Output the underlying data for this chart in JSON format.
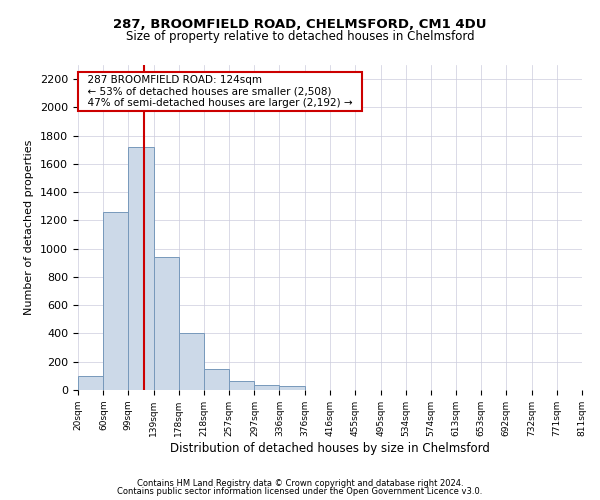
{
  "title1": "287, BROOMFIELD ROAD, CHELMSFORD, CM1 4DU",
  "title2": "Size of property relative to detached houses in Chelmsford",
  "xlabel": "Distribution of detached houses by size in Chelmsford",
  "ylabel": "Number of detached properties",
  "footer1": "Contains HM Land Registry data © Crown copyright and database right 2024.",
  "footer2": "Contains public sector information licensed under the Open Government Licence v3.0.",
  "bar_color": "#ccd9e8",
  "bar_edge_color": "#7799bb",
  "grid_color": "#ccccdd",
  "annotation_line_color": "#cc0000",
  "annotation_box_color": "#cc0000",
  "annotation_text": "  287 BROOMFIELD ROAD: 124sqm  \n  ← 53% of detached houses are smaller (2,508)  \n  47% of semi-detached houses are larger (2,192) →  ",
  "property_size": 124,
  "bin_edges": [
    20,
    60,
    99,
    139,
    178,
    218,
    257,
    297,
    336,
    376,
    416,
    455,
    495,
    534,
    574,
    613,
    653,
    692,
    732,
    771,
    811
  ],
  "bar_values": [
    100,
    1260,
    1720,
    940,
    400,
    150,
    65,
    35,
    25,
    0,
    0,
    0,
    0,
    0,
    0,
    0,
    0,
    0,
    0,
    0
  ],
  "ylim": [
    0,
    2300
  ],
  "yticks": [
    0,
    200,
    400,
    600,
    800,
    1000,
    1200,
    1400,
    1600,
    1800,
    2000,
    2200
  ],
  "tick_labels": [
    "20sqm",
    "60sqm",
    "99sqm",
    "139sqm",
    "178sqm",
    "218sqm",
    "257sqm",
    "297sqm",
    "336sqm",
    "376sqm",
    "416sqm",
    "455sqm",
    "495sqm",
    "534sqm",
    "574sqm",
    "613sqm",
    "653sqm",
    "692sqm",
    "732sqm",
    "771sqm",
    "811sqm"
  ]
}
